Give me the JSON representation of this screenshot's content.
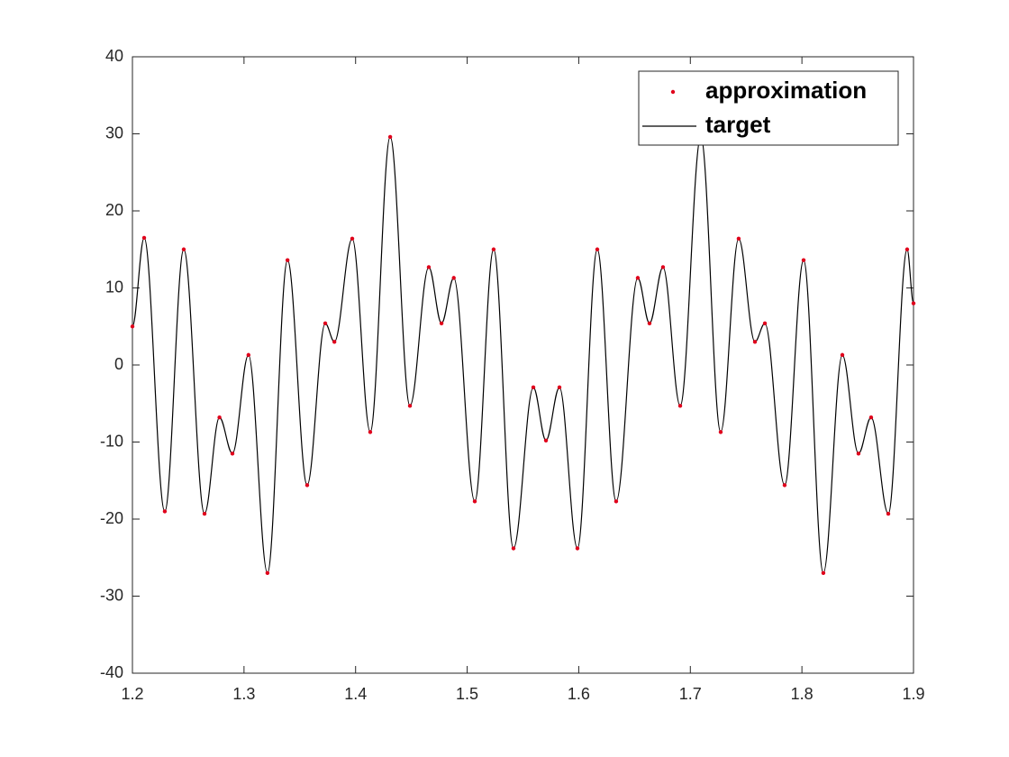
{
  "chart_data": {
    "type": "line",
    "x": [
      1.2,
      1.2105,
      1.229,
      1.246,
      1.2646,
      1.278,
      1.2896,
      1.304,
      1.321,
      1.339,
      1.3566,
      1.3728,
      1.381,
      1.397,
      1.4131,
      1.431,
      1.4487,
      1.4656,
      1.477,
      1.488,
      1.5068,
      1.5237,
      1.5415,
      1.5593,
      1.5706,
      1.5827,
      1.5988,
      1.6166,
      1.6335,
      1.6529,
      1.6634,
      1.6755,
      1.6909,
      1.7094,
      1.7272,
      1.7433,
      1.7579,
      1.7668,
      1.7845,
      1.8015,
      1.8192,
      1.8362,
      1.8507,
      1.862,
      1.8774,
      1.8943,
      1.9
    ],
    "series": [
      {
        "name": "approximation",
        "color": "#e0001b",
        "style": "markers",
        "values": [
          5,
          16.5,
          -19,
          15,
          -19.3,
          -6.8,
          -11.5,
          1.3,
          -27,
          13.6,
          -15.6,
          5.4,
          3,
          16.4,
          -8.7,
          29.6,
          -5.3,
          12.7,
          5.4,
          11.3,
          -17.7,
          15,
          -23.8,
          -2.9,
          -9.8,
          -2.9,
          -23.8,
          15,
          -17.7,
          11.3,
          5.4,
          12.7,
          -5.3,
          29.6,
          -8.7,
          16.4,
          3,
          5.4,
          -15.6,
          13.6,
          -27,
          1.3,
          -11.5,
          -6.8,
          -19.3,
          15,
          8
        ]
      },
      {
        "name": "target",
        "color": "#000000",
        "style": "line",
        "values": [
          5,
          16.5,
          -19,
          15,
          -19.3,
          -6.8,
          -11.5,
          1.3,
          -27,
          13.6,
          -15.6,
          5.4,
          3,
          16.4,
          -8.7,
          29.6,
          -5.3,
          12.7,
          5.4,
          11.3,
          -17.7,
          15,
          -23.8,
          -2.9,
          -9.8,
          -2.9,
          -23.8,
          15,
          -17.7,
          11.3,
          5.4,
          12.7,
          -5.3,
          29.6,
          -8.7,
          16.4,
          3,
          5.4,
          -15.6,
          13.6,
          -27,
          1.3,
          -11.5,
          -6.8,
          -19.3,
          15,
          8
        ]
      }
    ],
    "xlim": [
      1.2,
      1.9
    ],
    "xticks": [
      1.2,
      1.3,
      1.4,
      1.5,
      1.6,
      1.7,
      1.8,
      1.9
    ],
    "ylim": [
      -40,
      40
    ],
    "yticks": [
      -40,
      -30,
      -20,
      -10,
      0,
      10,
      20,
      30,
      40
    ],
    "legend": "northeast"
  }
}
